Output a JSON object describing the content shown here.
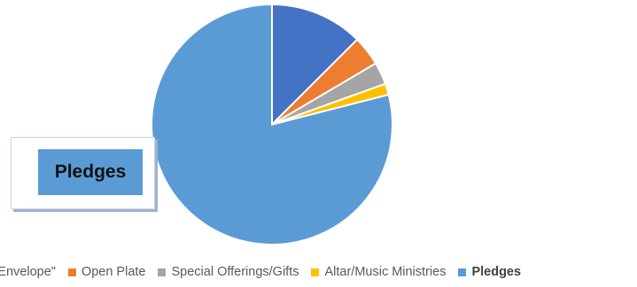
{
  "chart_data": {
    "type": "pie",
    "title": "",
    "slices": [
      {
        "label": "ge \"Envelope\"",
        "value": 12.5,
        "color": "#4472c4"
      },
      {
        "label": "Open Plate",
        "value": 4.0,
        "color": "#ed7d31"
      },
      {
        "label": "Special Offerings/Gifts",
        "value": 3.0,
        "color": "#a5a5a5"
      },
      {
        "label": "Altar/Music Ministries",
        "value": 1.5,
        "color": "#ffc000"
      },
      {
        "label": "Pledges",
        "value": 79.0,
        "color": "#5b9bd5",
        "bold": true
      }
    ],
    "legend_position": "bottom"
  },
  "callout": {
    "text": "Pledges"
  }
}
